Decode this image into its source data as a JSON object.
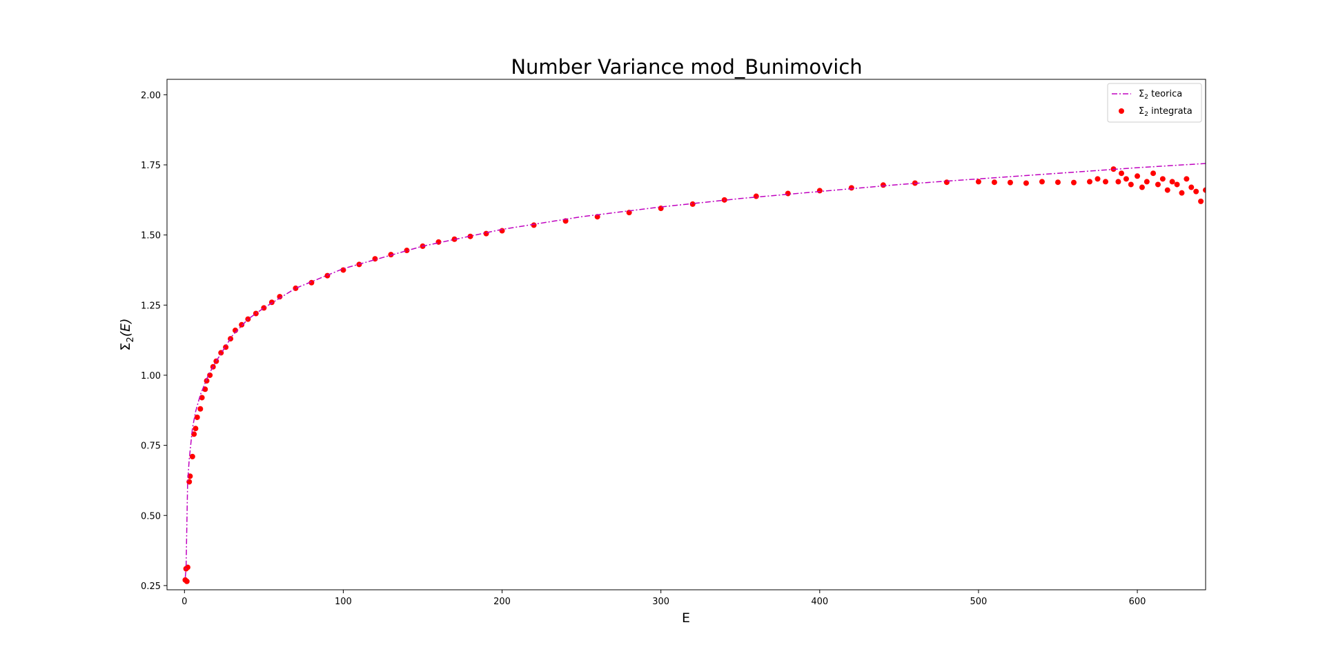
{
  "chart_data": {
    "type": "scatter",
    "title": "Number Variance mod_Bunimovich",
    "xlabel": "E",
    "ylabel_main": "Σ",
    "ylabel_sub": "2",
    "ylabel_rest": "(E)",
    "xlim": [
      -11,
      643
    ],
    "ylim": [
      0.235,
      2.055
    ],
    "xticks": [
      0,
      100,
      200,
      300,
      400,
      500,
      600
    ],
    "xtick_labels": [
      "0",
      "100",
      "200",
      "300",
      "400",
      "500",
      "600"
    ],
    "yticks": [
      0.25,
      0.5,
      0.75,
      1.0,
      1.25,
      1.5,
      1.75,
      2.0
    ],
    "ytick_labels": [
      "0.25",
      "0.50",
      "0.75",
      "1.00",
      "1.25",
      "1.50",
      "1.75",
      "2.00"
    ],
    "legend_position": "top-right",
    "grid": false,
    "series": [
      {
        "name_main": "Σ",
        "name_sub": "2",
        "name_rest": " teorica",
        "kind": "line",
        "style": "dash-dot",
        "color": "#bf00bf",
        "x": [
          0.5,
          1,
          2,
          3,
          5,
          7,
          10,
          15,
          20,
          30,
          40,
          50,
          70,
          100,
          150,
          200,
          250,
          300,
          350,
          400,
          450,
          500,
          550,
          600,
          643
        ],
        "y": [
          0.28,
          0.31,
          0.62,
          0.7,
          0.81,
          0.87,
          0.93,
          1.0,
          1.05,
          1.14,
          1.2,
          1.24,
          1.31,
          1.38,
          1.46,
          1.52,
          1.565,
          1.6,
          1.63,
          1.655,
          1.68,
          1.7,
          1.72,
          1.74,
          1.755
        ]
      },
      {
        "name_main": "Σ",
        "name_sub": "2",
        "name_rest": " integrata",
        "kind": "scatter",
        "color": "#ff0000",
        "x": [
          0.5,
          1,
          1.5,
          2,
          3,
          3.5,
          5,
          6,
          7,
          8,
          10,
          11,
          13,
          14,
          16,
          18,
          20,
          23,
          26,
          29,
          32,
          36,
          40,
          45,
          50,
          55,
          60,
          70,
          80,
          90,
          100,
          110,
          120,
          130,
          140,
          150,
          160,
          170,
          180,
          190,
          200,
          220,
          240,
          260,
          280,
          300,
          320,
          340,
          360,
          380,
          400,
          420,
          440,
          460,
          480,
          500,
          510,
          520,
          530,
          540,
          550,
          560,
          570,
          575,
          580,
          585,
          588,
          590,
          593,
          596,
          600,
          603,
          606,
          610,
          613,
          616,
          619,
          622,
          625,
          628,
          631,
          634,
          637,
          640,
          643
        ],
        "y": [
          0.27,
          0.31,
          0.265,
          0.315,
          0.62,
          0.64,
          0.71,
          0.79,
          0.81,
          0.85,
          0.88,
          0.92,
          0.95,
          0.98,
          1.0,
          1.03,
          1.05,
          1.08,
          1.1,
          1.13,
          1.16,
          1.18,
          1.2,
          1.22,
          1.24,
          1.26,
          1.28,
          1.31,
          1.33,
          1.355,
          1.375,
          1.395,
          1.415,
          1.43,
          1.445,
          1.46,
          1.475,
          1.485,
          1.495,
          1.505,
          1.515,
          1.535,
          1.55,
          1.565,
          1.58,
          1.595,
          1.61,
          1.625,
          1.638,
          1.648,
          1.658,
          1.668,
          1.678,
          1.685,
          1.688,
          1.69,
          1.688,
          1.687,
          1.685,
          1.69,
          1.688,
          1.687,
          1.69,
          1.7,
          1.69,
          1.735,
          1.69,
          1.72,
          1.7,
          1.68,
          1.71,
          1.67,
          1.69,
          1.72,
          1.68,
          1.7,
          1.66,
          1.69,
          1.68,
          1.65,
          1.7,
          1.67,
          1.655,
          1.62,
          1.66
        ]
      }
    ]
  }
}
